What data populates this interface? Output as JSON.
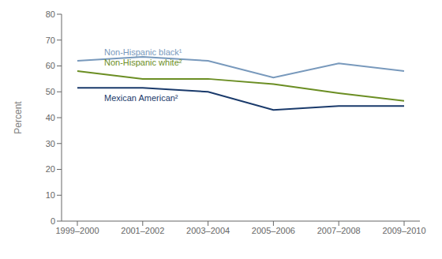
{
  "chart_data": {
    "type": "line",
    "y_label": "Percent",
    "categories": [
      "1999–2000",
      "2001–2002",
      "2003–2004",
      "2005–2006",
      "2007–2008",
      "2009–2010"
    ],
    "series": [
      {
        "name": "Non-Hispanic black¹",
        "color": "#7899bc",
        "values": [
          62,
          63.5,
          62,
          55.5,
          61,
          58
        ]
      },
      {
        "name": "Non-Hispanic white²",
        "color": "#6b8e23",
        "values": [
          58,
          55,
          55,
          53,
          49.5,
          46.5
        ]
      },
      {
        "name": "Mexican American²",
        "color": "#1a3a6b",
        "values": [
          51.5,
          51.5,
          50,
          43,
          44.5,
          44.5
        ]
      }
    ],
    "ylim": [
      0,
      80
    ],
    "yticks": [
      0,
      10,
      20,
      30,
      40,
      50,
      60,
      70,
      80
    ],
    "grid": false
  }
}
